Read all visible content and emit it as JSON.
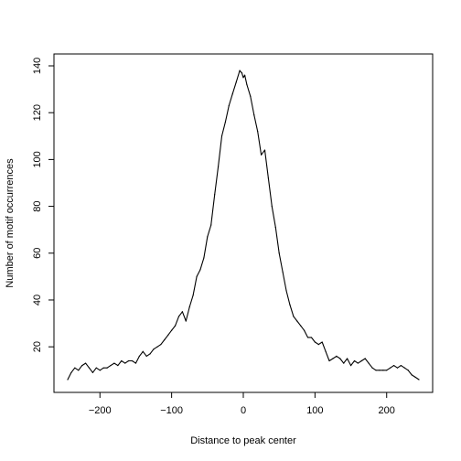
{
  "chart_data": {
    "type": "line",
    "title": "",
    "xlabel": "Distance to peak center",
    "ylabel": "Number of motif occurrences",
    "xlim": [
      -245,
      245
    ],
    "ylim": [
      6,
      140
    ],
    "x_ticks": [
      -200,
      -100,
      0,
      100,
      200
    ],
    "y_ticks": [
      20,
      40,
      60,
      80,
      100,
      120,
      140
    ],
    "grid": false,
    "series": [
      {
        "color": "#000000",
        "x": [
          -245,
          -240,
          -235,
          -230,
          -225,
          -220,
          -215,
          -210,
          -205,
          -200,
          -195,
          -190,
          -185,
          -180,
          -175,
          -170,
          -165,
          -160,
          -155,
          -150,
          -145,
          -140,
          -135,
          -130,
          -125,
          -120,
          -115,
          -110,
          -105,
          -100,
          -95,
          -90,
          -85,
          -80,
          -75,
          -70,
          -65,
          -60,
          -55,
          -50,
          -45,
          -40,
          -35,
          -30,
          -25,
          -20,
          -15,
          -10,
          -5,
          -2,
          0,
          2,
          5,
          10,
          15,
          20,
          25,
          30,
          35,
          40,
          45,
          50,
          55,
          60,
          65,
          70,
          75,
          80,
          85,
          90,
          95,
          100,
          105,
          110,
          115,
          120,
          125,
          130,
          135,
          140,
          145,
          150,
          155,
          160,
          165,
          170,
          175,
          180,
          185,
          190,
          195,
          200,
          205,
          210,
          215,
          220,
          225,
          230,
          235,
          240,
          245
        ],
        "y": [
          6,
          9,
          11,
          10,
          12,
          13,
          11,
          9,
          11,
          10,
          11,
          11,
          12,
          13,
          12,
          14,
          13,
          14,
          14,
          13,
          16,
          18,
          16,
          17,
          19,
          20,
          21,
          23,
          25,
          27,
          29,
          33,
          35,
          31,
          37,
          42,
          50,
          53,
          58,
          67,
          72,
          85,
          97,
          110,
          116,
          123,
          128,
          133,
          138,
          137,
          135,
          136,
          132,
          127,
          119,
          112,
          102,
          104,
          92,
          80,
          71,
          60,
          52,
          44,
          38,
          33,
          31,
          29,
          27,
          24,
          24,
          22,
          21,
          22,
          18,
          14,
          15,
          16,
          15,
          13,
          15,
          12,
          14,
          13,
          14,
          15,
          13,
          11,
          10,
          10,
          10,
          10,
          11,
          12,
          11,
          12,
          11,
          10,
          8,
          7,
          6
        ]
      }
    ]
  }
}
